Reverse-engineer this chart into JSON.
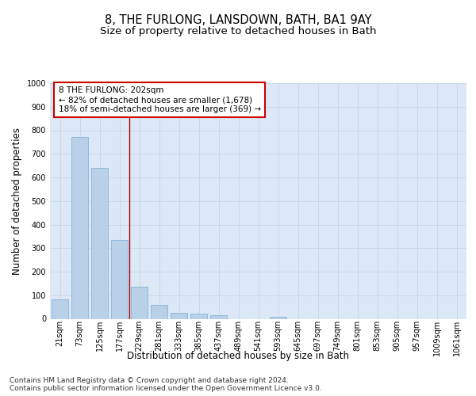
{
  "title": "8, THE FURLONG, LANSDOWN, BATH, BA1 9AY",
  "subtitle": "Size of property relative to detached houses in Bath",
  "xlabel": "Distribution of detached houses by size in Bath",
  "ylabel": "Number of detached properties",
  "categories": [
    "21sqm",
    "73sqm",
    "125sqm",
    "177sqm",
    "229sqm",
    "281sqm",
    "333sqm",
    "385sqm",
    "437sqm",
    "489sqm",
    "541sqm",
    "593sqm",
    "645sqm",
    "697sqm",
    "749sqm",
    "801sqm",
    "853sqm",
    "905sqm",
    "957sqm",
    "1009sqm",
    "1061sqm"
  ],
  "values": [
    83,
    770,
    642,
    333,
    135,
    60,
    25,
    22,
    16,
    0,
    0,
    10,
    0,
    0,
    0,
    0,
    0,
    0,
    0,
    0,
    0
  ],
  "bar_color": "#b8d0e8",
  "bar_edgecolor": "#7aadd4",
  "bar_linewidth": 0.5,
  "vline_x": 3.5,
  "vline_color": "#aa0000",
  "annotation_text": "8 THE FURLONG: 202sqm\n← 82% of detached houses are smaller (1,678)\n18% of semi-detached houses are larger (369) →",
  "annotation_box_facecolor": "#ffffff",
  "annotation_box_edgecolor": "#cc0000",
  "ylim": [
    0,
    1000
  ],
  "yticks": [
    0,
    100,
    200,
    300,
    400,
    500,
    600,
    700,
    800,
    900,
    1000
  ],
  "grid_color": "#c8d4e8",
  "background_color": "#dce8f5",
  "footer_text": "Contains HM Land Registry data © Crown copyright and database right 2024.\nContains public sector information licensed under the Open Government Licence v3.0.",
  "title_fontsize": 10.5,
  "subtitle_fontsize": 9.5,
  "axis_label_fontsize": 8.5,
  "tick_fontsize": 7,
  "footer_fontsize": 6.5,
  "annotation_fontsize": 7.5
}
